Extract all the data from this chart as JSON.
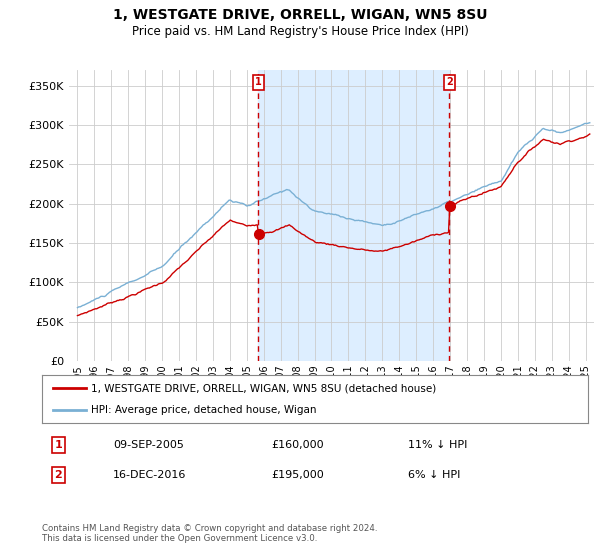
{
  "title": "1, WESTGATE DRIVE, ORRELL, WIGAN, WN5 8SU",
  "subtitle": "Price paid vs. HM Land Registry's House Price Index (HPI)",
  "legend_line1": "1, WESTGATE DRIVE, ORRELL, WIGAN, WN5 8SU (detached house)",
  "legend_line2": "HPI: Average price, detached house, Wigan",
  "transaction1_date": "09-SEP-2005",
  "transaction1_price": "£160,000",
  "transaction1_hpi": "11% ↓ HPI",
  "transaction2_date": "16-DEC-2016",
  "transaction2_price": "£195,000",
  "transaction2_hpi": "6% ↓ HPI",
  "footer": "Contains HM Land Registry data © Crown copyright and database right 2024.\nThis data is licensed under the Open Government Licence v3.0.",
  "hpi_color": "#7ab0d4",
  "price_color": "#cc0000",
  "shade_color": "#ddeeff",
  "ylim": [
    0,
    370000
  ],
  "yticks": [
    0,
    50000,
    100000,
    150000,
    200000,
    250000,
    300000,
    350000
  ],
  "background_color": "#ffffff",
  "grid_color": "#cccccc",
  "t1_year": 2005.68,
  "t2_year": 2016.96,
  "t1_price": 160000,
  "t2_price": 195000
}
